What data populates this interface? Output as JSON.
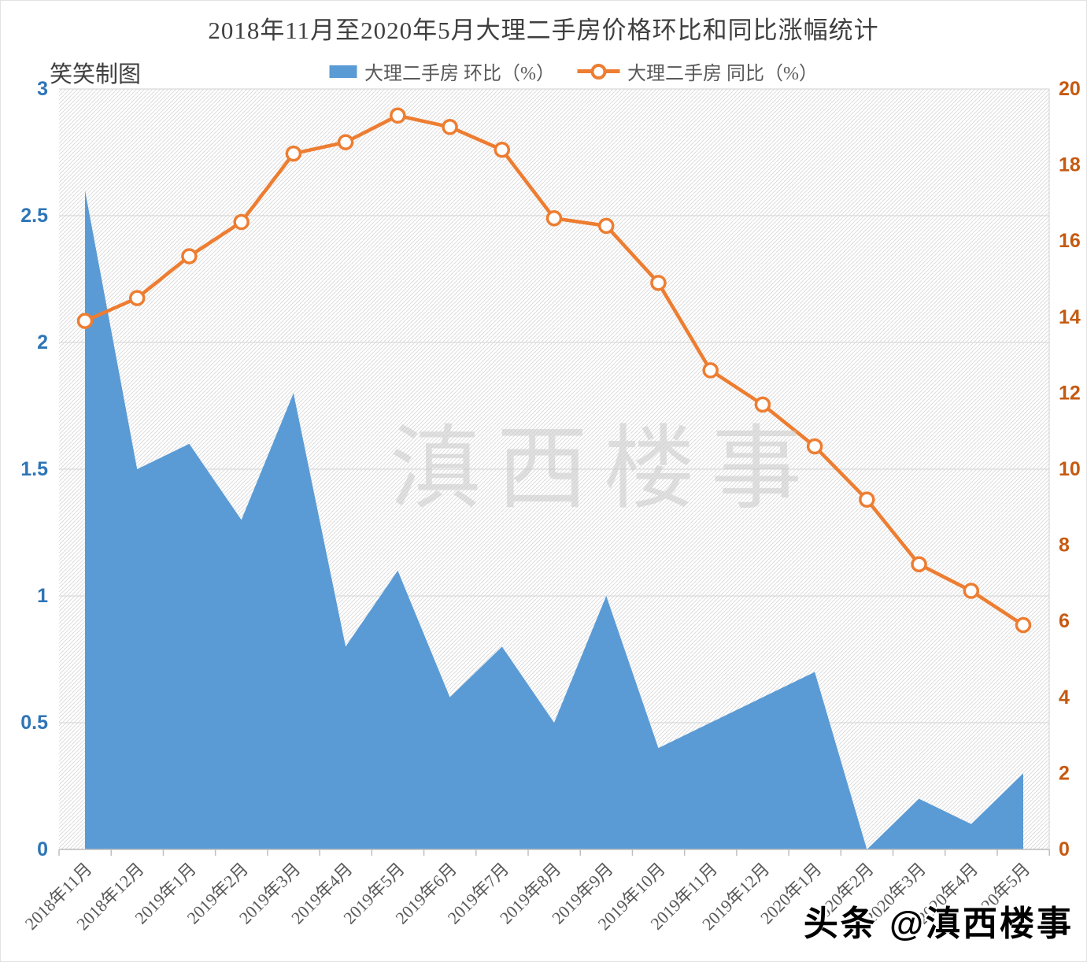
{
  "page": {
    "title": "2018年11月至2020年5月大理二手房价格环比和同比涨幅统计",
    "credit": "笑笑制图",
    "watermark": "滇西楼事",
    "stamp": "头条 @滇西楼事"
  },
  "colors": {
    "area_series": "#5B9BD5",
    "line_series": "#ED7D31",
    "marker_fill": "#FFFFFF",
    "left_axis_labels": "#2E75B6",
    "right_axis_labels": "#C55A11",
    "gridline": "#D9D9D9",
    "axis_line": "#BFBFBF",
    "hatch": "#DBDBDB",
    "x_labels": "#595959",
    "watermark_gray": "#C9C9C9",
    "title_text": "#3F3F3F"
  },
  "chart_data": {
    "type": "combo",
    "title": "2018年11月至2020年5月大理二手房价格环比和同比涨幅统计",
    "categories": [
      "2018年11月",
      "2018年12月",
      "2019年1月",
      "2019年2月",
      "2019年3月",
      "2019年4月",
      "2019年5月",
      "2019年6月",
      "2019年7月",
      "2019年8月",
      "2019年9月",
      "2019年10月",
      "2019年11月",
      "2019年12月",
      "2020年1月",
      "2020年2月",
      "2020年3月",
      "2020年4月",
      "2020年5月"
    ],
    "series": [
      {
        "name": "大理二手房 环比（%）",
        "type": "area",
        "axis": "left",
        "color": "#5B9BD5",
        "values": [
          2.6,
          1.5,
          1.6,
          1.3,
          1.8,
          0.8,
          1.1,
          0.6,
          0.8,
          0.5,
          1.0,
          0.4,
          0.5,
          0.6,
          0.7,
          0.0,
          0.2,
          0.1,
          0.3
        ]
      },
      {
        "name": "大理二手房 同比（%）",
        "type": "line",
        "axis": "right",
        "color": "#ED7D31",
        "values": [
          13.9,
          14.5,
          15.6,
          16.5,
          18.3,
          18.6,
          19.3,
          19.0,
          18.4,
          16.6,
          16.4,
          14.9,
          12.6,
          11.7,
          10.6,
          9.2,
          7.5,
          6.8,
          5.9
        ]
      }
    ],
    "left_axis": {
      "min": 0,
      "max": 3,
      "ticks": [
        "0",
        "0.5",
        "1",
        "1.5",
        "2",
        "2.5",
        "3"
      ]
    },
    "right_axis": {
      "min": 0,
      "max": 20,
      "ticks": [
        "0",
        "2",
        "4",
        "6",
        "8",
        "10",
        "12",
        "14",
        "16",
        "18",
        "20"
      ]
    },
    "grid": true,
    "legend_position": "top",
    "plot_fill": "diagonal-hatch"
  }
}
